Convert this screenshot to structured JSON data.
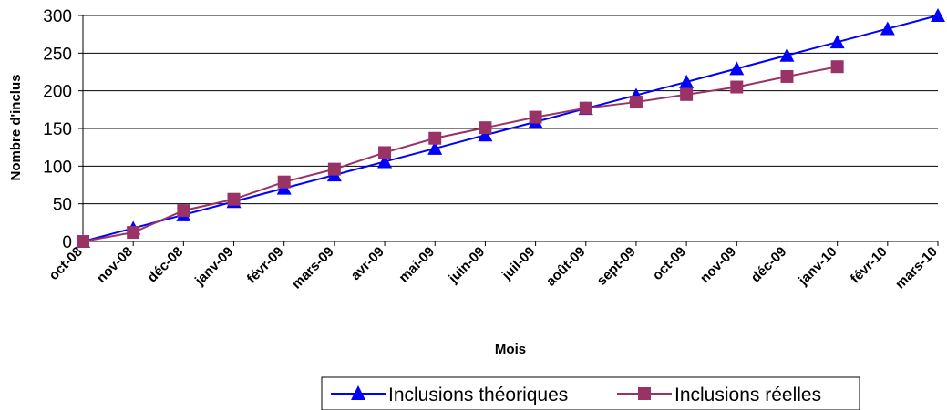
{
  "chart_data": {
    "type": "line",
    "xlabel": "Mois",
    "ylabel": "Nombre d'inclus",
    "ylim": [
      0,
      300
    ],
    "yticks": [
      0,
      50,
      100,
      150,
      200,
      250,
      300
    ],
    "grid": "horizontal",
    "legend_position": "bottom",
    "categories": [
      "oct-08",
      "nov-08",
      "déc-08",
      "janv-09",
      "févr-09",
      "mars-09",
      "avr-09",
      "mai-09",
      "juin-09",
      "juil-09",
      "août-09",
      "sept-09",
      "oct-09",
      "nov-09",
      "déc-09",
      "janv-10",
      "févr-10",
      "mars-10"
    ],
    "series": [
      {
        "name": "Inclusions théoriques",
        "color": "#0000FF",
        "marker": "triangle",
        "values": [
          0,
          17.6,
          35.3,
          52.9,
          70.6,
          88.2,
          105.9,
          123.5,
          141.2,
          158.8,
          176.5,
          194.1,
          211.8,
          229.4,
          247.1,
          264.7,
          282.4,
          300
        ]
      },
      {
        "name": "Inclusions réelles",
        "color": "#993366",
        "marker": "square",
        "values": [
          0,
          12,
          41,
          56,
          79,
          96,
          118,
          137,
          151,
          165,
          177,
          185,
          195,
          205,
          219,
          232,
          null,
          null
        ]
      }
    ]
  }
}
